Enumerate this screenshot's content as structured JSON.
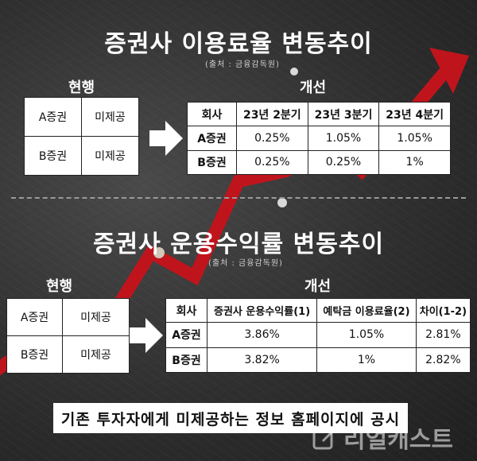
{
  "section1": {
    "title": "증권사 이용료율 변동추이",
    "source": "(출처 : 금융감독원)",
    "current_label": "현행",
    "improved_label": "개선",
    "current_rows": [
      {
        "company": "A증권",
        "value": "미제공"
      },
      {
        "company": "B증권",
        "value": "미제공"
      }
    ],
    "improved_headers": [
      "회사",
      "23년 2분기",
      "23년 3분기",
      "23년 4분기"
    ],
    "improved_rows": [
      [
        "A증권",
        "0.25%",
        "1.05%",
        "1.05%"
      ],
      [
        "B증권",
        "0.25%",
        "0.25%",
        "1%"
      ]
    ]
  },
  "section2": {
    "title": "증권사 운용수익률 변동추이",
    "source": "(출처 : 금융감독원)",
    "current_label": "현행",
    "improved_label": "개선",
    "current_rows": [
      {
        "company": "A증권",
        "value": "미제공"
      },
      {
        "company": "B증권",
        "value": "미제공"
      }
    ],
    "improved_headers": [
      "회사",
      "증권사 운용수익률(1)",
      "예탁금 이용료율(2)",
      "차이(1-2)"
    ],
    "improved_rows": [
      [
        "A증권",
        "3.86%",
        "1.05%",
        "2.81%"
      ],
      [
        "B증권",
        "3.82%",
        "1%",
        "2.82%"
      ]
    ]
  },
  "banner": "기존 투자자에게 미제공하는 정보 홈페이지에 공시",
  "logo": {
    "text": "리얼캐스트",
    "icon": "pencil-note-icon"
  },
  "colors": {
    "trend_line": "#c0141c",
    "background": "#2b2b2b"
  }
}
